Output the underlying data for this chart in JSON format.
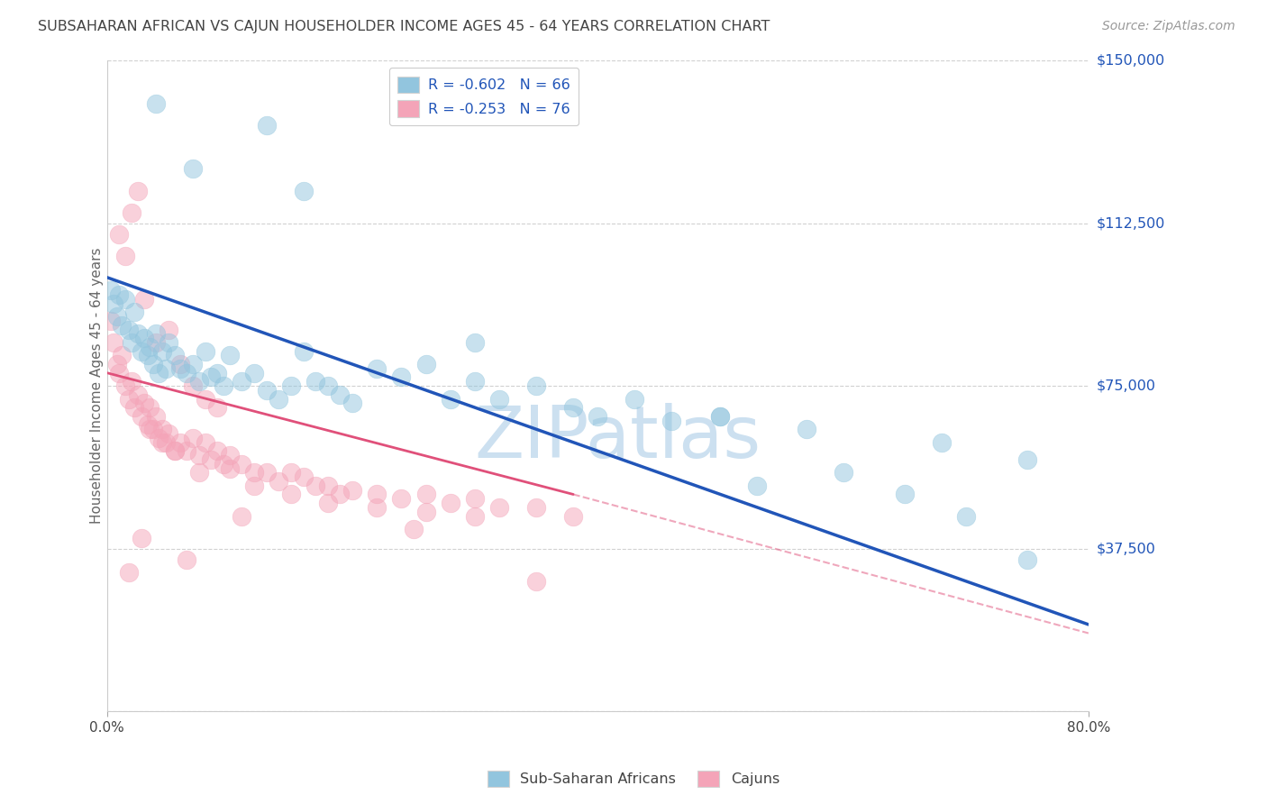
{
  "title": "SUBSAHARAN AFRICAN VS CAJUN HOUSEHOLDER INCOME AGES 45 - 64 YEARS CORRELATION CHART",
  "source": "Source: ZipAtlas.com",
  "ylabel": "Householder Income Ages 45 - 64 years",
  "yticks": [
    0,
    37500,
    75000,
    112500,
    150000
  ],
  "ytick_labels": [
    "",
    "$37,500",
    "$75,000",
    "$112,500",
    "$150,000"
  ],
  "xlim": [
    0.0,
    80.0
  ],
  "ylim": [
    0,
    150000
  ],
  "blue_R": -0.602,
  "blue_N": 66,
  "pink_R": -0.253,
  "pink_N": 76,
  "blue_color": "#92c5de",
  "pink_color": "#f4a4b8",
  "blue_line_color": "#2155b8",
  "pink_line_color": "#e0507a",
  "title_color": "#444444",
  "source_color": "#999999",
  "axis_label_color": "#666666",
  "watermark_color": "#cce0f0",
  "blue_scatter_x": [
    0.3,
    0.5,
    0.8,
    1.0,
    1.2,
    1.5,
    1.8,
    2.0,
    2.2,
    2.5,
    2.8,
    3.0,
    3.3,
    3.5,
    3.8,
    4.0,
    4.2,
    4.5,
    4.8,
    5.0,
    5.5,
    6.0,
    6.5,
    7.0,
    7.5,
    8.0,
    8.5,
    9.0,
    9.5,
    10.0,
    11.0,
    12.0,
    13.0,
    14.0,
    15.0,
    16.0,
    17.0,
    18.0,
    19.0,
    20.0,
    22.0,
    24.0,
    26.0,
    28.0,
    30.0,
    32.0,
    35.0,
    38.0,
    40.0,
    43.0,
    46.0,
    50.0,
    53.0,
    57.0,
    60.0,
    65.0,
    70.0,
    75.0,
    13.0,
    16.0,
    30.0,
    50.0,
    68.0,
    75.0,
    4.0,
    7.0
  ],
  "blue_scatter_y": [
    97000,
    94000,
    91000,
    96000,
    89000,
    95000,
    88000,
    85000,
    92000,
    87000,
    83000,
    86000,
    82000,
    84000,
    80000,
    87000,
    78000,
    83000,
    79000,
    85000,
    82000,
    79000,
    78000,
    80000,
    76000,
    83000,
    77000,
    78000,
    75000,
    82000,
    76000,
    78000,
    74000,
    72000,
    75000,
    83000,
    76000,
    75000,
    73000,
    71000,
    79000,
    77000,
    80000,
    72000,
    76000,
    72000,
    75000,
    70000,
    68000,
    72000,
    67000,
    68000,
    52000,
    65000,
    55000,
    50000,
    45000,
    35000,
    135000,
    120000,
    85000,
    68000,
    62000,
    58000,
    140000,
    125000
  ],
  "pink_scatter_x": [
    0.3,
    0.5,
    0.8,
    1.0,
    1.2,
    1.5,
    1.8,
    2.0,
    2.2,
    2.5,
    2.8,
    3.0,
    3.3,
    3.5,
    3.8,
    4.0,
    4.2,
    4.5,
    4.8,
    5.0,
    5.5,
    6.0,
    6.5,
    7.0,
    7.5,
    8.0,
    8.5,
    9.0,
    9.5,
    10.0,
    11.0,
    12.0,
    13.0,
    14.0,
    15.0,
    16.0,
    17.0,
    18.0,
    19.0,
    20.0,
    22.0,
    24.0,
    26.0,
    28.0,
    30.0,
    32.0,
    35.0,
    38.0,
    1.0,
    1.5,
    2.0,
    2.5,
    3.0,
    4.0,
    5.0,
    6.0,
    7.0,
    8.0,
    9.0,
    3.5,
    4.5,
    5.5,
    7.5,
    10.0,
    12.0,
    15.0,
    18.0,
    22.0,
    26.0,
    30.0,
    6.5,
    2.8,
    1.8,
    11.0,
    25.0,
    35.0
  ],
  "pink_scatter_y": [
    90000,
    85000,
    80000,
    78000,
    82000,
    75000,
    72000,
    76000,
    70000,
    73000,
    68000,
    71000,
    66000,
    70000,
    65000,
    68000,
    63000,
    65000,
    62000,
    64000,
    60000,
    62000,
    60000,
    63000,
    59000,
    62000,
    58000,
    60000,
    57000,
    59000,
    57000,
    55000,
    55000,
    53000,
    55000,
    54000,
    52000,
    52000,
    50000,
    51000,
    50000,
    49000,
    50000,
    48000,
    49000,
    47000,
    47000,
    45000,
    110000,
    105000,
    115000,
    120000,
    95000,
    85000,
    88000,
    80000,
    75000,
    72000,
    70000,
    65000,
    62000,
    60000,
    55000,
    56000,
    52000,
    50000,
    48000,
    47000,
    46000,
    45000,
    35000,
    40000,
    32000,
    45000,
    42000,
    30000
  ],
  "blue_line_x0": 0.0,
  "blue_line_x1": 80.0,
  "blue_line_y0": 100000,
  "blue_line_y1": 20000,
  "pink_line_x0": 0.0,
  "pink_line_x1": 38.0,
  "pink_line_y0": 78000,
  "pink_line_y1": 50000,
  "pink_dash_x0": 38.0,
  "pink_dash_x1": 80.0,
  "pink_dash_y0": 50000,
  "pink_dash_y1": 18000
}
